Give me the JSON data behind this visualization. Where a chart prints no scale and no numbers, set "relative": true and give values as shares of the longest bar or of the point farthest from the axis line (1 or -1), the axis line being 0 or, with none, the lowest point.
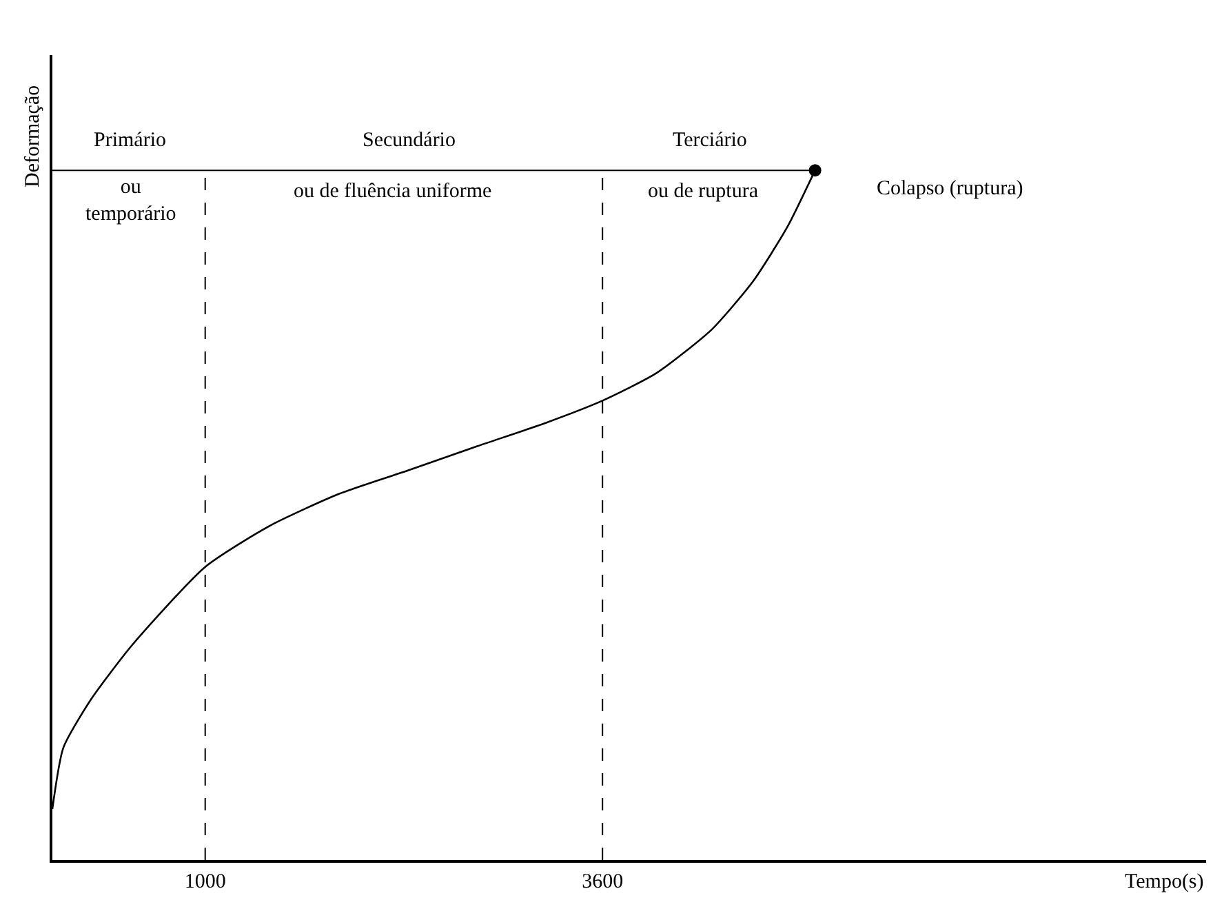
{
  "chart_data": {
    "type": "line",
    "relative": true,
    "xlabel": "Tempo(s)",
    "ylabel": "Deformação",
    "xlim": [
      0,
      7550
    ],
    "xticks": [
      1000,
      3600
    ],
    "marker": "none",
    "line_style": "solid",
    "series": [
      {
        "color": "#000000",
        "x": [
          0,
          72,
          253,
          523,
          1000,
          1426,
          1877,
          2329,
          2780,
          3231,
          3600,
          3953,
          4314,
          4585,
          4810,
          4991
        ],
        "values": [
          0.074,
          0.163,
          0.233,
          0.312,
          0.425,
          0.485,
          0.531,
          0.565,
          0.6,
          0.634,
          0.666,
          0.706,
          0.769,
          0.839,
          0.918,
          1.0
        ]
      },
      {
        "type": "scatter",
        "marker": "circle",
        "color": "#000000",
        "x": [
          4991
        ],
        "values": [
          1.0
        ]
      }
    ],
    "ref_lines": [
      {
        "axis": "x",
        "value": 1000,
        "line_style": "dashed",
        "color": "#000000"
      },
      {
        "axis": "x",
        "value": 3600,
        "line_style": "dashed",
        "color": "#000000"
      },
      {
        "axis": "y",
        "value": 1.0,
        "line_style": "solid",
        "color": "#000000"
      }
    ],
    "annotations": [
      "Primário",
      "ou\ntemporário",
      "Secundário",
      "ou de fluência uniforme",
      "Terciário",
      "ou de ruptura",
      "Colapso (ruptura)"
    ]
  }
}
